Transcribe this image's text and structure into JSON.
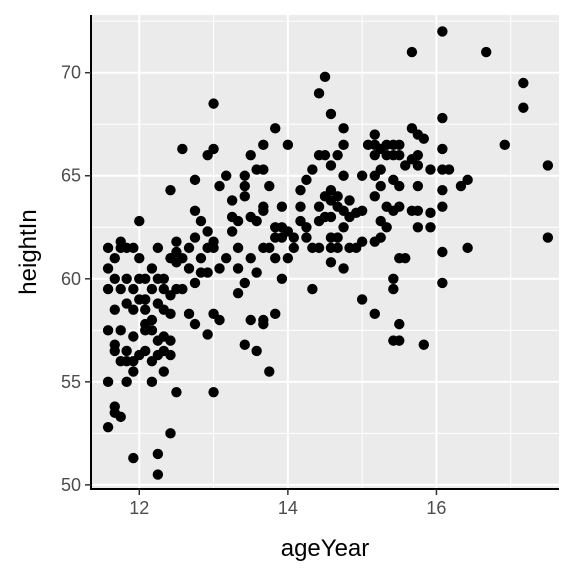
{
  "chart_data": {
    "type": "scatter",
    "title": "",
    "xlabel": "ageYear",
    "ylabel": "heightIn",
    "xlim": [
      11.35,
      17.65
    ],
    "ylim": [
      49.8,
      72.8
    ],
    "x_ticks": [
      12,
      14,
      16
    ],
    "y_ticks": [
      50,
      55,
      60,
      65,
      70
    ],
    "grid": true,
    "panel_background": "#ebebeb",
    "grid_color": "#ffffff",
    "point_color": "#000000",
    "points": [
      [
        11.58,
        52.8
      ],
      [
        11.58,
        55.0
      ],
      [
        11.58,
        57.5
      ],
      [
        11.58,
        59.5
      ],
      [
        11.58,
        60.5
      ],
      [
        11.58,
        61.5
      ],
      [
        11.67,
        53.8
      ],
      [
        11.67,
        53.5
      ],
      [
        11.67,
        56.5
      ],
      [
        11.67,
        56.8
      ],
      [
        11.67,
        58.5
      ],
      [
        11.67,
        60.0
      ],
      [
        11.67,
        61.0
      ],
      [
        11.75,
        53.3
      ],
      [
        11.75,
        56.0
      ],
      [
        11.75,
        57.5
      ],
      [
        11.75,
        59.5
      ],
      [
        11.75,
        61.5
      ],
      [
        11.75,
        61.8
      ],
      [
        11.83,
        55.0
      ],
      [
        11.83,
        56.0
      ],
      [
        11.83,
        56.5
      ],
      [
        11.83,
        58.8
      ],
      [
        11.83,
        60.0
      ],
      [
        11.83,
        61.5
      ],
      [
        11.92,
        51.3
      ],
      [
        11.92,
        55.5
      ],
      [
        11.92,
        56.0
      ],
      [
        11.92,
        57.2
      ],
      [
        11.92,
        58.5
      ],
      [
        11.92,
        59.5
      ],
      [
        11.92,
        61.5
      ],
      [
        12.0,
        56.3
      ],
      [
        12.0,
        59.0
      ],
      [
        12.0,
        60.0
      ],
      [
        12.0,
        61.0
      ],
      [
        12.0,
        62.8
      ],
      [
        12.08,
        56.5
      ],
      [
        12.08,
        57.5
      ],
      [
        12.08,
        57.8
      ],
      [
        12.08,
        58.5
      ],
      [
        12.08,
        59.0
      ],
      [
        12.08,
        60.0
      ],
      [
        12.17,
        55.0
      ],
      [
        12.17,
        56.0
      ],
      [
        12.17,
        57.5
      ],
      [
        12.17,
        58.0
      ],
      [
        12.17,
        59.5
      ],
      [
        12.17,
        60.5
      ],
      [
        12.25,
        50.5
      ],
      [
        12.25,
        51.5
      ],
      [
        12.25,
        56.3
      ],
      [
        12.25,
        57.0
      ],
      [
        12.25,
        58.8
      ],
      [
        12.25,
        60.0
      ],
      [
        12.25,
        61.5
      ],
      [
        12.33,
        55.5
      ],
      [
        12.33,
        56.5
      ],
      [
        12.33,
        57.2
      ],
      [
        12.33,
        58.5
      ],
      [
        12.33,
        59.5
      ],
      [
        12.33,
        60.0
      ],
      [
        12.42,
        52.5
      ],
      [
        12.42,
        56.3
      ],
      [
        12.42,
        57.0
      ],
      [
        12.42,
        58.3
      ],
      [
        12.42,
        59.2
      ],
      [
        12.42,
        61.0
      ],
      [
        12.42,
        64.3
      ],
      [
        12.5,
        54.5
      ],
      [
        12.5,
        59.5
      ],
      [
        12.5,
        60.8
      ],
      [
        12.5,
        61.3
      ],
      [
        12.5,
        61.8
      ],
      [
        12.58,
        59.5
      ],
      [
        12.58,
        61.0
      ],
      [
        12.58,
        66.3
      ],
      [
        12.67,
        58.3
      ],
      [
        12.67,
        60.5
      ],
      [
        12.67,
        61.5
      ],
      [
        12.75,
        57.8
      ],
      [
        12.75,
        59.8
      ],
      [
        12.75,
        62.0
      ],
      [
        12.75,
        63.3
      ],
      [
        12.75,
        64.8
      ],
      [
        12.83,
        60.3
      ],
      [
        12.83,
        61.0
      ],
      [
        12.83,
        62.8
      ],
      [
        12.92,
        57.3
      ],
      [
        12.92,
        60.3
      ],
      [
        12.92,
        61.5
      ],
      [
        12.92,
        62.3
      ],
      [
        12.92,
        66.0
      ],
      [
        13.0,
        54.5
      ],
      [
        13.0,
        58.3
      ],
      [
        13.0,
        61.5
      ],
      [
        13.0,
        61.8
      ],
      [
        13.0,
        66.3
      ],
      [
        13.0,
        68.5
      ],
      [
        13.08,
        58.0
      ],
      [
        13.08,
        60.5
      ],
      [
        13.08,
        64.5
      ],
      [
        13.17,
        61.0
      ],
      [
        13.17,
        65.0
      ],
      [
        13.25,
        62.3
      ],
      [
        13.25,
        63.0
      ],
      [
        13.25,
        63.8
      ],
      [
        13.33,
        59.3
      ],
      [
        13.33,
        60.5
      ],
      [
        13.33,
        61.5
      ],
      [
        13.33,
        62.8
      ],
      [
        13.42,
        56.8
      ],
      [
        13.42,
        59.8
      ],
      [
        13.42,
        64.0
      ],
      [
        13.42,
        64.5
      ],
      [
        13.42,
        65.0
      ],
      [
        13.5,
        58.0
      ],
      [
        13.5,
        61.0
      ],
      [
        13.5,
        63.0
      ],
      [
        13.5,
        66.0
      ],
      [
        13.58,
        56.5
      ],
      [
        13.58,
        60.3
      ],
      [
        13.58,
        62.8
      ],
      [
        13.58,
        65.3
      ],
      [
        13.67,
        57.8
      ],
      [
        13.67,
        58.0
      ],
      [
        13.67,
        61.5
      ],
      [
        13.67,
        63.3
      ],
      [
        13.67,
        63.5
      ],
      [
        13.67,
        65.3
      ],
      [
        13.67,
        66.5
      ],
      [
        13.75,
        55.5
      ],
      [
        13.75,
        61.5
      ],
      [
        13.75,
        64.5
      ],
      [
        13.83,
        58.3
      ],
      [
        13.83,
        61.0
      ],
      [
        13.83,
        62.0
      ],
      [
        13.83,
        62.5
      ],
      [
        13.83,
        67.3
      ],
      [
        13.92,
        60.0
      ],
      [
        13.92,
        62.0
      ],
      [
        13.92,
        62.5
      ],
      [
        13.92,
        63.5
      ],
      [
        14.0,
        61.0
      ],
      [
        14.0,
        62.3
      ],
      [
        14.0,
        66.5
      ],
      [
        14.08,
        61.5
      ],
      [
        14.08,
        62.0
      ],
      [
        14.17,
        62.8
      ],
      [
        14.17,
        63.5
      ],
      [
        14.17,
        64.3
      ],
      [
        14.25,
        62.0
      ],
      [
        14.25,
        62.5
      ],
      [
        14.25,
        64.8
      ],
      [
        14.33,
        59.5
      ],
      [
        14.33,
        61.5
      ],
      [
        14.33,
        65.3
      ],
      [
        14.42,
        61.5
      ],
      [
        14.42,
        62.8
      ],
      [
        14.42,
        63.5
      ],
      [
        14.42,
        66.0
      ],
      [
        14.42,
        69.0
      ],
      [
        14.5,
        63.0
      ],
      [
        14.5,
        64.0
      ],
      [
        14.5,
        66.0
      ],
      [
        14.5,
        69.8
      ],
      [
        14.58,
        60.8
      ],
      [
        14.58,
        61.5
      ],
      [
        14.58,
        62.0
      ],
      [
        14.58,
        63.0
      ],
      [
        14.58,
        63.8
      ],
      [
        14.58,
        64.3
      ],
      [
        14.58,
        65.5
      ],
      [
        14.58,
        68.0
      ],
      [
        14.67,
        61.5
      ],
      [
        14.67,
        62.0
      ],
      [
        14.67,
        63.5
      ],
      [
        14.67,
        64.0
      ],
      [
        14.67,
        66.0
      ],
      [
        14.75,
        60.5
      ],
      [
        14.75,
        62.5
      ],
      [
        14.75,
        63.3
      ],
      [
        14.75,
        65.0
      ],
      [
        14.75,
        66.5
      ],
      [
        14.75,
        67.3
      ],
      [
        14.83,
        61.5
      ],
      [
        14.83,
        63.0
      ],
      [
        14.83,
        63.8
      ],
      [
        14.92,
        61.5
      ],
      [
        14.92,
        63.2
      ],
      [
        15.0,
        59.0
      ],
      [
        15.0,
        61.8
      ],
      [
        15.0,
        63.3
      ],
      [
        15.0,
        65.0
      ],
      [
        15.08,
        66.5
      ],
      [
        15.17,
        58.3
      ],
      [
        15.17,
        61.8
      ],
      [
        15.17,
        64.0
      ],
      [
        15.17,
        65.0
      ],
      [
        15.17,
        66.0
      ],
      [
        15.17,
        66.5
      ],
      [
        15.17,
        67.0
      ],
      [
        15.25,
        62.0
      ],
      [
        15.25,
        62.8
      ],
      [
        15.25,
        64.5
      ],
      [
        15.25,
        65.3
      ],
      [
        15.25,
        66.3
      ],
      [
        15.33,
        62.5
      ],
      [
        15.33,
        63.5
      ],
      [
        15.33,
        66.0
      ],
      [
        15.33,
        66.5
      ],
      [
        15.42,
        57.0
      ],
      [
        15.42,
        59.5
      ],
      [
        15.42,
        60.0
      ],
      [
        15.42,
        63.3
      ],
      [
        15.42,
        64.8
      ],
      [
        15.42,
        66.0
      ],
      [
        15.42,
        66.5
      ],
      [
        15.5,
        57.0
      ],
      [
        15.5,
        57.8
      ],
      [
        15.5,
        61.0
      ],
      [
        15.5,
        63.5
      ],
      [
        15.5,
        64.5
      ],
      [
        15.5,
        66.0
      ],
      [
        15.5,
        66.5
      ],
      [
        15.58,
        61.0
      ],
      [
        15.58,
        65.5
      ],
      [
        15.67,
        63.3
      ],
      [
        15.67,
        65.8
      ],
      [
        15.67,
        67.3
      ],
      [
        15.67,
        71.0
      ],
      [
        15.75,
        62.5
      ],
      [
        15.75,
        63.3
      ],
      [
        15.75,
        64.5
      ],
      [
        15.75,
        65.5
      ],
      [
        15.75,
        66.0
      ],
      [
        15.75,
        67.0
      ],
      [
        15.83,
        56.8
      ],
      [
        15.83,
        66.8
      ],
      [
        15.92,
        62.5
      ],
      [
        15.92,
        63.2
      ],
      [
        15.92,
        65.3
      ],
      [
        16.08,
        59.8
      ],
      [
        16.08,
        61.3
      ],
      [
        16.08,
        63.5
      ],
      [
        16.08,
        64.3
      ],
      [
        16.08,
        65.3
      ],
      [
        16.08,
        66.3
      ],
      [
        16.08,
        67.8
      ],
      [
        16.08,
        72.0
      ],
      [
        16.17,
        65.3
      ],
      [
        16.33,
        64.5
      ],
      [
        16.42,
        61.5
      ],
      [
        16.42,
        64.8
      ],
      [
        16.67,
        71.0
      ],
      [
        16.92,
        66.5
      ],
      [
        17.17,
        68.3
      ],
      [
        17.17,
        69.5
      ],
      [
        17.5,
        62.0
      ],
      [
        17.5,
        65.5
      ]
    ]
  }
}
